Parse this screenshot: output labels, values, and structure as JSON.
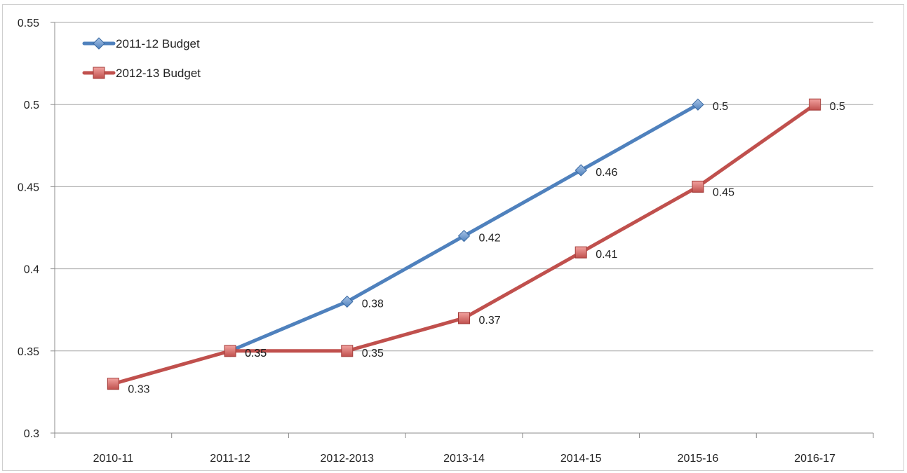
{
  "chart_data": {
    "type": "line",
    "categories": [
      "2010-11",
      "2011-12",
      "2012-2013",
      "2013-14",
      "2014-15",
      "2015-16",
      "2016-17"
    ],
    "ylim": [
      0.3,
      0.55
    ],
    "yticks": [
      "0.3",
      "0.35",
      "0.4",
      "0.45",
      "0.5",
      "0.55"
    ],
    "grid": true,
    "legend_position": "top-left",
    "series": [
      {
        "name": "2011-12 Budget",
        "color": "#4f81bd",
        "marker": "diamond",
        "values": [
          null,
          0.35,
          0.38,
          0.42,
          0.46,
          0.5,
          null
        ],
        "labels": [
          "",
          "0.35",
          "0.38",
          "0.42",
          "0.46",
          "0.5",
          ""
        ]
      },
      {
        "name": "2012-13 Budget",
        "color": "#c0504d",
        "marker": "square",
        "values": [
          0.33,
          0.35,
          0.35,
          0.37,
          0.41,
          0.45,
          0.5
        ],
        "labels": [
          "0.33",
          "0.35",
          "0.35",
          "0.37",
          "0.41",
          "0.45",
          "0.5"
        ]
      }
    ]
  }
}
